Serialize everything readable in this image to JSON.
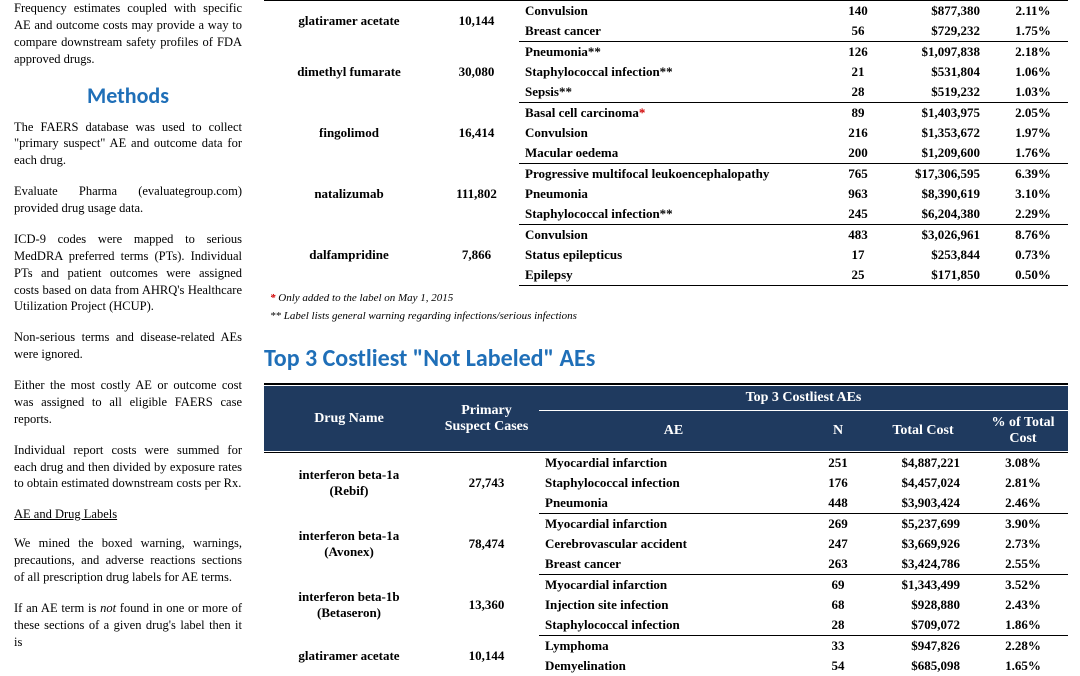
{
  "left": {
    "p1": "Frequency estimates coupled with specific AE and outcome costs may provide a way to compare downstream safety profiles of FDA approved drugs.",
    "methods_heading": "Methods",
    "p2": "The FAERS database was used to collect \"primary suspect\" AE and outcome data for each drug.",
    "p3": "Evaluate Pharma (evaluategroup.com) provided drug usage data.",
    "p4": "ICD-9 codes were mapped to serious MedDRA preferred terms (PTs). Individual PTs and patient outcomes were assigned costs based on data from AHRQ's Healthcare Utilization Project (HCUP).",
    "p5": "Non-serious terms and disease-related AEs were ignored.",
    "p6": "Either the most costly AE or outcome cost was assigned to all eligible FAERS case reports.",
    "p7": "Individual report costs were summed for each drug and then divided by exposure rates to obtain estimated downstream costs per Rx.",
    "subhead": "AE and Drug Labels",
    "p8": "We mined the boxed warning, warnings, precautions, and adverse reactions sections of all prescription drug labels for AE terms.",
    "p9a": "If an AE term is ",
    "p9b": "not",
    "p9c": " found in one or more of these sections of a given drug's label then it is"
  },
  "table1": {
    "groups": [
      {
        "drug": "glatiramer acetate",
        "cases": "10,144",
        "rows": [
          {
            "ae": "Convulsion",
            "n": "140",
            "cost": "$877,380",
            "pct": "2.11%"
          },
          {
            "ae": "Breast cancer",
            "n": "56",
            "cost": "$729,232",
            "pct": "1.75%"
          }
        ]
      },
      {
        "drug": "dimethyl fumarate",
        "cases": "30,080",
        "rows": [
          {
            "ae": "Pneumonia**",
            "n": "126",
            "cost": "$1,097,838",
            "pct": "2.18%"
          },
          {
            "ae": "Staphylococcal infection**",
            "n": "21",
            "cost": "$531,804",
            "pct": "1.06%"
          },
          {
            "ae": "Sepsis**",
            "n": "28",
            "cost": "$519,232",
            "pct": "1.03%"
          }
        ]
      },
      {
        "drug": "fingolimod",
        "cases": "16,414",
        "rows": [
          {
            "ae": "Basal cell carcinoma",
            "mark": "*",
            "n": "89",
            "cost": "$1,403,975",
            "pct": "2.05%"
          },
          {
            "ae": "Convulsion",
            "n": "216",
            "cost": "$1,353,672",
            "pct": "1.97%"
          },
          {
            "ae": "Macular oedema",
            "n": "200",
            "cost": "$1,209,600",
            "pct": "1.76%"
          }
        ]
      },
      {
        "drug": "natalizumab",
        "cases": "111,802",
        "rows": [
          {
            "ae": "Progressive multifocal leukoencephalopathy",
            "n": "765",
            "cost": "$17,306,595",
            "pct": "6.39%"
          },
          {
            "ae": "Pneumonia",
            "n": "963",
            "cost": "$8,390,619",
            "pct": "3.10%"
          },
          {
            "ae": "Staphylococcal infection**",
            "n": "245",
            "cost": "$6,204,380",
            "pct": "2.29%"
          }
        ]
      },
      {
        "drug": "dalfampridine",
        "cases": "7,866",
        "rows": [
          {
            "ae": "Convulsion",
            "n": "483",
            "cost": "$3,026,961",
            "pct": "8.76%"
          },
          {
            "ae": "Status epilepticus",
            "n": "17",
            "cost": "$253,844",
            "pct": "0.73%"
          },
          {
            "ae": "Epilepsy",
            "n": "25",
            "cost": "$171,850",
            "pct": "0.50%"
          }
        ]
      }
    ],
    "footnote1": " Only added to the label on May 1, 2015",
    "footnote2": "** Label lists general warning regarding infections/serious infections"
  },
  "section2_title": "Top 3 Costliest \"Not Labeled\" AEs",
  "table2": {
    "head": {
      "drug": "Drug Name",
      "cases": "Primary Suspect Cases",
      "span": "Top 3 Costliest AEs",
      "ae": "AE",
      "n": "N",
      "cost": "Total Cost",
      "pct": "% of Total Cost"
    },
    "groups": [
      {
        "drug": "interferon beta-1a (Rebif)",
        "cases": "27,743",
        "rows": [
          {
            "ae": "Myocardial infarction",
            "n": "251",
            "cost": "$4,887,221",
            "pct": "3.08%"
          },
          {
            "ae": "Staphylococcal infection",
            "n": "176",
            "cost": "$4,457,024",
            "pct": "2.81%"
          },
          {
            "ae": "Pneumonia",
            "n": "448",
            "cost": "$3,903,424",
            "pct": "2.46%"
          }
        ]
      },
      {
        "drug": "interferon beta-1a (Avonex)",
        "cases": "78,474",
        "rows": [
          {
            "ae": "Myocardial infarction",
            "n": "269",
            "cost": "$5,237,699",
            "pct": "3.90%"
          },
          {
            "ae": "Cerebrovascular accident",
            "n": "247",
            "cost": "$3,669,926",
            "pct": "2.73%"
          },
          {
            "ae": "Breast cancer",
            "n": "263",
            "cost": "$3,424,786",
            "pct": "2.55%"
          }
        ]
      },
      {
        "drug": "interferon beta-1b (Betaseron)",
        "cases": "13,360",
        "rows": [
          {
            "ae": "Myocardial infarction",
            "n": "69",
            "cost": "$1,343,499",
            "pct": "3.52%"
          },
          {
            "ae": "Injection site infection",
            "n": "68",
            "cost": "$928,880",
            "pct": "2.43%"
          },
          {
            "ae": "Staphylococcal infection",
            "n": "28",
            "cost": "$709,072",
            "pct": "1.86%"
          }
        ]
      },
      {
        "drug": "glatiramer acetate",
        "cases": "10,144",
        "rows": [
          {
            "ae": "Lymphoma",
            "n": "33",
            "cost": "$947,826",
            "pct": "2.28%"
          },
          {
            "ae": "Demyelination",
            "n": "54",
            "cost": "$685,098",
            "pct": "1.65%"
          }
        ]
      }
    ]
  },
  "colors": {
    "heading": "#1f6fb8",
    "tableHead": "#1f3a5f",
    "asterisk": "#d00000"
  }
}
